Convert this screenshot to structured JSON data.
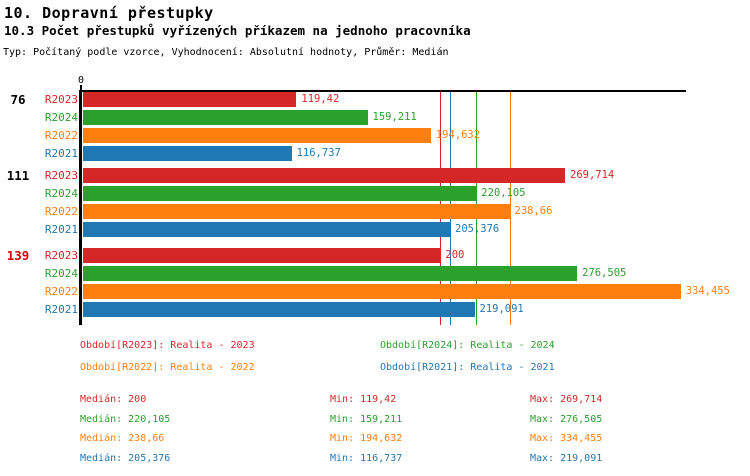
{
  "header": {
    "title": "10. Dopravní přestupky",
    "subtitle": "10.3 Počet přestupků vyřízených příkazem na jednoho pracovníka",
    "meta": "Typ: Počítaný podle vzorce, Vyhodnocení: Absolutní hodnoty, Průměr: Medián"
  },
  "colors": {
    "R2023": "#d62728",
    "R2024": "#2ca02c",
    "R2022": "#ff7f0e",
    "R2021": "#1f77b4",
    "axis": "#000000",
    "group_label_default": "#000000",
    "group_label_highlight": "#d40000"
  },
  "chart_data": {
    "type": "bar",
    "orientation": "horizontal",
    "title": "10.3 Počet přestupků vyřízených příkazem na jednoho pracovníka",
    "xlabel": "",
    "ylabel": "",
    "axis": {
      "min": 0,
      "max": 337,
      "tick_labels": [
        "0"
      ],
      "grid": false
    },
    "series_order": [
      "R2023",
      "R2024",
      "R2022",
      "R2021"
    ],
    "series": [
      {
        "id": "R2023",
        "label": "R2023",
        "legend": "Období[R2023]: Realita - 2023",
        "color": "#d62728"
      },
      {
        "id": "R2024",
        "label": "R2024",
        "legend": "Období[R2024]: Realita - 2024",
        "color": "#2ca02c"
      },
      {
        "id": "R2022",
        "label": "R2022",
        "legend": "Období[R2022]: Realita - 2022",
        "color": "#ff7f0e"
      },
      {
        "id": "R2021",
        "label": "R2021",
        "legend": "Období[R2021]: Realita - 2021",
        "color": "#1f77b4"
      }
    ],
    "groups": [
      {
        "label": "76",
        "label_color": "#000000",
        "values": [
          {
            "series": "R2023",
            "value": 119.42,
            "display": "119,42"
          },
          {
            "series": "R2024",
            "value": 159.211,
            "display": "159,211"
          },
          {
            "series": "R2022",
            "value": 194.632,
            "display": "194,632"
          },
          {
            "series": "R2021",
            "value": 116.737,
            "display": "116,737"
          }
        ]
      },
      {
        "label": "111",
        "label_color": "#000000",
        "values": [
          {
            "series": "R2023",
            "value": 269.714,
            "display": "269,714"
          },
          {
            "series": "R2024",
            "value": 220.105,
            "display": "220,105"
          },
          {
            "series": "R2022",
            "value": 238.66,
            "display": "238,66"
          },
          {
            "series": "R2021",
            "value": 205.376,
            "display": "205,376"
          }
        ]
      },
      {
        "label": "139",
        "label_color": "#d40000",
        "values": [
          {
            "series": "R2023",
            "value": 200,
            "display": "200"
          },
          {
            "series": "R2024",
            "value": 276.505,
            "display": "276,505"
          },
          {
            "series": "R2022",
            "value": 334.455,
            "display": "334,455"
          },
          {
            "series": "R2021",
            "value": 219.091,
            "display": "219,091"
          }
        ]
      }
    ],
    "median_lines": [
      {
        "series": "R2023",
        "value": 200
      },
      {
        "series": "R2021",
        "value": 205.376
      },
      {
        "series": "R2024",
        "value": 220.105
      },
      {
        "series": "R2022",
        "value": 238.66
      }
    ]
  },
  "legend": {
    "items": [
      {
        "series": "R2023",
        "text": "Období[R2023]: Realita - 2023"
      },
      {
        "series": "R2024",
        "text": "Období[R2024]: Realita - 2024"
      },
      {
        "series": "R2022",
        "text": "Období[R2022]: Realita - 2022"
      },
      {
        "series": "R2021",
        "text": "Období[R2021]: Realita - 2021"
      }
    ]
  },
  "stats": {
    "rows": [
      {
        "series": "R2023",
        "median": "Medián: 200",
        "min": "Min: 119,42",
        "max": "Max: 269,714"
      },
      {
        "series": "R2024",
        "median": "Medián: 220,105",
        "min": "Min: 159,211",
        "max": "Max: 276,505"
      },
      {
        "series": "R2022",
        "median": "Medián: 238,66",
        "min": "Min: 194,632",
        "max": "Max: 334,455"
      },
      {
        "series": "R2021",
        "median": "Medián: 205,376",
        "min": "Min: 116,737",
        "max": "Max: 219,091"
      }
    ]
  }
}
